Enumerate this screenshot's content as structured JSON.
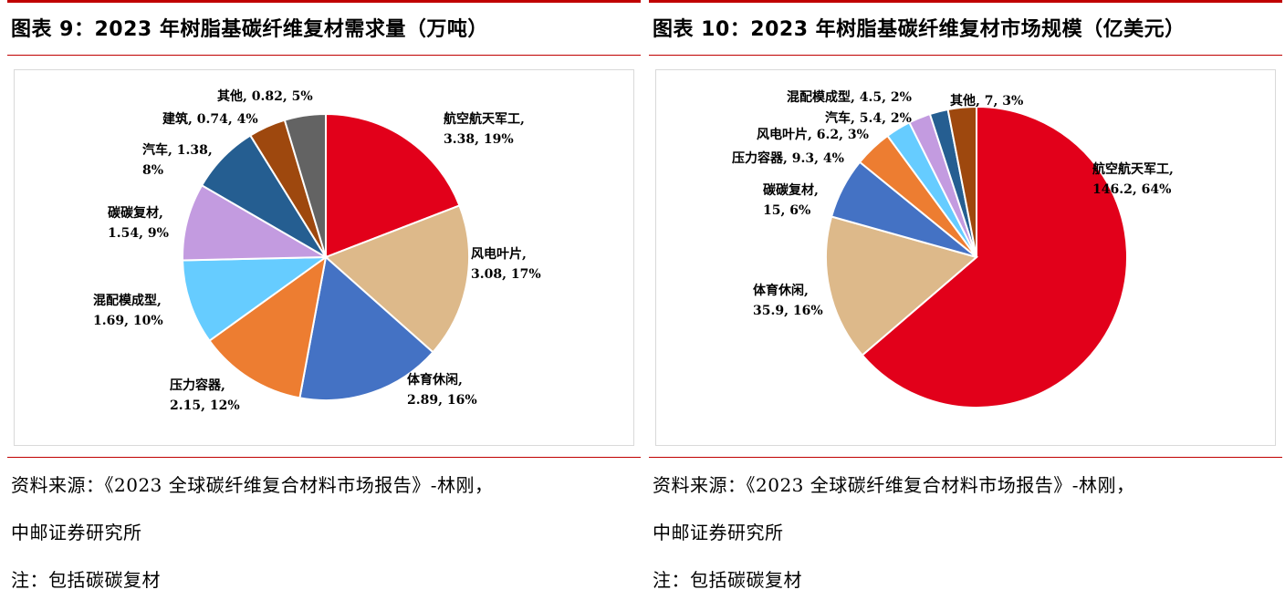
{
  "left": {
    "title": "图表 9：2023 年树脂基碳纤维复材需求量（万吨）",
    "source_line1": "资料来源：《2023 全球碳纤维复合材料市场报告》-林刚，",
    "source_line2": "中邮证券研究所",
    "note": "注：包括碳碳复材"
  },
  "right": {
    "title": "图表 10：2023 年树脂基碳纤维复材市场规模（亿美元）",
    "source_line1": "资料来源：《2023 全球碳纤维复合材料市场报告》-林刚，",
    "source_line2": "中邮证券研究所",
    "note": "注：包括碳碳复材"
  },
  "chart_data": [
    {
      "type": "pie",
      "title": "2023 年树脂基碳纤维复材需求量（万吨）",
      "slices": [
        {
          "name": "航空航天军工",
          "value": 3.38,
          "percent": "19%",
          "color": "#e2001a",
          "label_lines": [
            "航空航天军工,",
            "3.38, 19%"
          ]
        },
        {
          "name": "风电叶片",
          "value": 3.08,
          "percent": "17%",
          "color": "#ddb98a",
          "label_lines": [
            "风电叶片,",
            "3.08, 17%"
          ]
        },
        {
          "name": "体育休闲",
          "value": 2.89,
          "percent": "16%",
          "color": "#4472c4",
          "label_lines": [
            "体育休闲,",
            "2.89, 16%"
          ]
        },
        {
          "name": "压力容器",
          "value": 2.15,
          "percent": "12%",
          "color": "#ed7d31",
          "label_lines": [
            "压力容器,",
            "2.15, 12%"
          ]
        },
        {
          "name": "混配模成型",
          "value": 1.69,
          "percent": "10%",
          "color": "#66ccff",
          "label_lines": [
            "混配模成型,",
            "1.69, 10%"
          ]
        },
        {
          "name": "碳碳复材",
          "value": 1.54,
          "percent": "9%",
          "color": "#c39be0",
          "label_lines": [
            "碳碳复材,",
            "1.54, 9%"
          ]
        },
        {
          "name": "汽车",
          "value": 1.38,
          "percent": "8%",
          "color": "#255e91",
          "label_lines": [
            "汽车, 1.38,",
            "8%"
          ]
        },
        {
          "name": "建筑",
          "value": 0.74,
          "percent": "4%",
          "color": "#9e480e",
          "label_lines": [
            "建筑, 0.74, 4%"
          ]
        },
        {
          "name": "其他",
          "value": 0.82,
          "percent": "5%",
          "color": "#636363",
          "label_lines": [
            "其他, 0.82, 5%"
          ]
        }
      ]
    },
    {
      "type": "pie",
      "title": "2023 年树脂基碳纤维复材市场规模（亿美元）",
      "slices": [
        {
          "name": "航空航天军工",
          "value": 146.2,
          "percent": "64%",
          "color": "#e2001a",
          "label_lines": [
            "航空航天军工,",
            "146.2, 64%"
          ]
        },
        {
          "name": "体育休闲",
          "value": 35.9,
          "percent": "16%",
          "color": "#ddb98a",
          "label_lines": [
            "体育休闲,",
            "35.9, 16%"
          ]
        },
        {
          "name": "碳碳复材",
          "value": 15,
          "percent": "6%",
          "color": "#4472c4",
          "label_lines": [
            "碳碳复材,",
            "15, 6%"
          ]
        },
        {
          "name": "压力容器",
          "value": 9.3,
          "percent": "4%",
          "color": "#ed7d31",
          "label_lines": [
            "压力容器, 9.3, 4%"
          ]
        },
        {
          "name": "风电叶片",
          "value": 6.2,
          "percent": "3%",
          "color": "#66ccff",
          "label_lines": [
            "风电叶片, 6.2, 3%"
          ]
        },
        {
          "name": "汽车",
          "value": 5.4,
          "percent": "2%",
          "color": "#c39be0",
          "label_lines": [
            "汽车, 5.4, 2%"
          ]
        },
        {
          "name": "混配模成型",
          "value": 4.5,
          "percent": "2%",
          "color": "#255e91",
          "label_lines": [
            "混配模成型, 4.5, 2%"
          ]
        },
        {
          "name": "其他",
          "value": 7,
          "percent": "3%",
          "color": "#9e480e",
          "label_lines": [
            "其他, 7, 3%"
          ]
        }
      ]
    }
  ]
}
